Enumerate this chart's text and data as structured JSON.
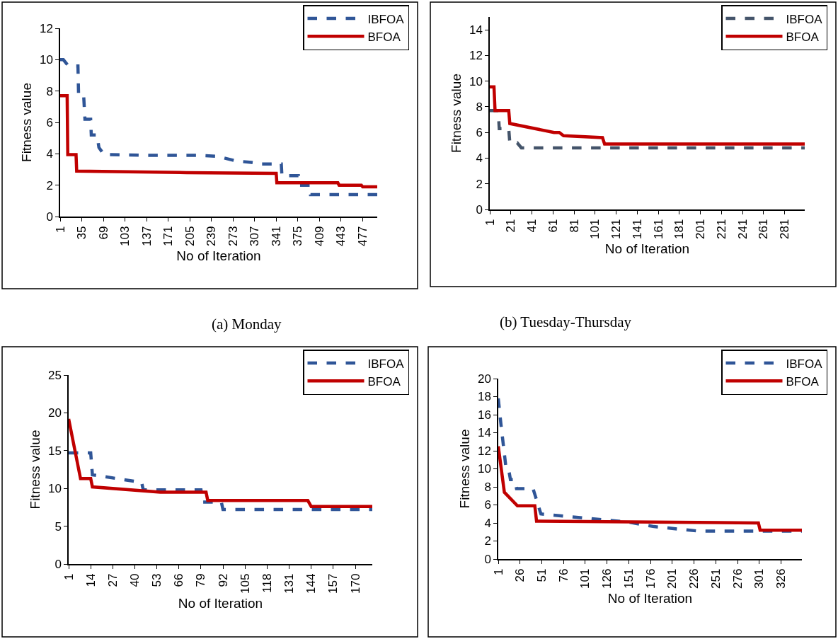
{
  "chart_data": [
    {
      "type": "line",
      "xlabel": "No of Iteration",
      "ylabel": "Fitness value",
      "xlim": [
        1,
        500
      ],
      "xticks": [
        1,
        35,
        69,
        103,
        137,
        171,
        205,
        239,
        273,
        307,
        341,
        375,
        409,
        443,
        477
      ],
      "ylim": [
        0,
        12
      ],
      "yticks": [
        0,
        2,
        4,
        6,
        8,
        10,
        12
      ],
      "legend": "top right",
      "annotations": [
        "(a) Monday"
      ],
      "series": [
        {
          "name": "IBFOA",
          "color": "#2f5597",
          "line_style": "dashed",
          "x": [
            1,
            6,
            14,
            29,
            30,
            38,
            40,
            49,
            50,
            59,
            62,
            70,
            150,
            216,
            245,
            257,
            277,
            302,
            318,
            349,
            350,
            376,
            378,
            394,
            395,
            500
          ],
          "values": [
            10,
            10,
            9.6,
            9.6,
            7.7,
            7.7,
            6.2,
            6.2,
            5.2,
            5.2,
            4.4,
            3.95,
            3.9,
            3.9,
            3.85,
            3.75,
            3.55,
            3.45,
            3.35,
            3.35,
            2.6,
            2.6,
            2.0,
            2.0,
            1.4,
            1.4
          ]
        },
        {
          "name": "BFOA",
          "color": "#c00000",
          "line_style": "solid",
          "x": [
            1,
            12,
            13,
            26,
            27,
            200,
            341,
            342,
            438,
            440,
            475,
            477,
            500
          ],
          "values": [
            7.7,
            7.7,
            3.95,
            3.95,
            2.9,
            2.8,
            2.75,
            2.15,
            2.15,
            2.0,
            2.0,
            1.9,
            1.9
          ]
        }
      ]
    },
    {
      "type": "line",
      "xlabel": "No of Iteration",
      "ylabel": "Fitness value",
      "xlim": [
        1,
        300
      ],
      "xticks": [
        1,
        21,
        41,
        61,
        81,
        101,
        121,
        141,
        161,
        181,
        201,
        221,
        241,
        261,
        281
      ],
      "ylim": [
        0,
        15
      ],
      "yticks": [
        0,
        2,
        4,
        6,
        8,
        10,
        12,
        14
      ],
      "legend": "top right",
      "annotations": [
        "(b) Tuesday-Thursday"
      ],
      "series": [
        {
          "name": "IBFOA",
          "color": "#44546a",
          "line_style": "dashed",
          "x": [
            1,
            9,
            10,
            19,
            20,
            27,
            31,
            300
          ],
          "values": [
            7.7,
            7.7,
            6.3,
            6.3,
            5.2,
            5.2,
            4.8,
            4.8
          ]
        },
        {
          "name": "BFOA",
          "color": "#c00000",
          "line_style": "solid",
          "x": [
            1,
            5,
            6,
            19,
            20,
            62,
            67,
            71,
            108,
            110,
            300
          ],
          "values": [
            9.55,
            9.55,
            7.7,
            7.7,
            6.7,
            6.0,
            6.0,
            5.75,
            5.6,
            5.1,
            5.1
          ]
        }
      ]
    },
    {
      "type": "line",
      "xlabel": "No of Iteration",
      "ylabel": "Fitness value",
      "xlim": [
        1,
        180
      ],
      "xticks": [
        1,
        14,
        27,
        40,
        53,
        66,
        79,
        92,
        105,
        118,
        131,
        144,
        157,
        170
      ],
      "ylim": [
        0,
        25
      ],
      "yticks": [
        0,
        5,
        10,
        15,
        20,
        25
      ],
      "legend": "top right",
      "series": [
        {
          "name": "IBFOA",
          "color": "#2f5597",
          "line_style": "dashed",
          "x": [
            1,
            14,
            15,
            44,
            45,
            79,
            80,
            91,
            92,
            180
          ],
          "values": [
            14.7,
            14.7,
            11.8,
            10.8,
            9.8,
            9.8,
            8.2,
            8.2,
            7.2,
            7.2
          ]
        },
        {
          "name": "BFOA",
          "color": "#c00000",
          "line_style": "solid",
          "x": [
            1,
            8,
            14,
            15,
            55,
            82,
            83,
            142,
            144,
            180
          ],
          "values": [
            19.2,
            11.3,
            11.3,
            10.2,
            9.5,
            9.5,
            8.4,
            8.4,
            7.6,
            7.6
          ]
        }
      ]
    },
    {
      "type": "line",
      "xlabel": "No of Iteration",
      "ylabel": "Fitness value",
      "xlim": [
        1,
        350
      ],
      "xticks": [
        1,
        26,
        51,
        76,
        101,
        126,
        151,
        176,
        201,
        226,
        251,
        276,
        301,
        326
      ],
      "ylim": [
        0,
        20
      ],
      "yticks": [
        0,
        2,
        4,
        6,
        8,
        10,
        12,
        14,
        16,
        18,
        20
      ],
      "legend": "top right",
      "series": [
        {
          "name": "IBFOA",
          "color": "#2f5597",
          "line_style": "dashed",
          "x": [
            1,
            4,
            10,
            13,
            15,
            20,
            22,
            41,
            50,
            105,
            150,
            180,
            231,
            350
          ],
          "values": [
            17.8,
            15,
            10,
            9.9,
            8.8,
            8.8,
            7.8,
            7.8,
            5.0,
            4.5,
            4.1,
            3.6,
            3.1,
            3.1
          ]
        },
        {
          "name": "BFOA",
          "color": "#c00000",
          "line_style": "solid",
          "x": [
            1,
            8,
            23,
            43,
            45,
            297,
            300,
            302,
            350
          ],
          "values": [
            12.5,
            7.4,
            5.9,
            5.9,
            4.2,
            4.0,
            4.0,
            3.2,
            3.2
          ]
        }
      ]
    }
  ]
}
